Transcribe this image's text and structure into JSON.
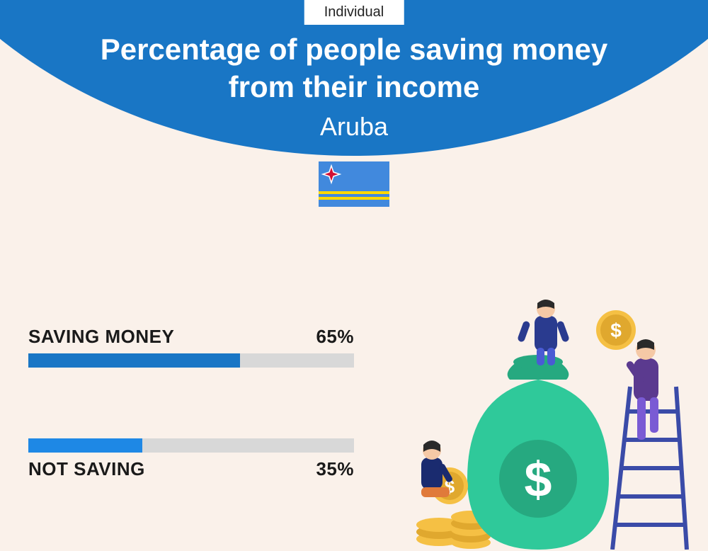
{
  "badge": "Individual",
  "title_line1": "Percentage of people saving money",
  "title_line2": "from their income",
  "country": "Aruba",
  "flag": {
    "bg": "#4189dd",
    "stripe": "#ffd700",
    "star_fill": "#d21034",
    "star_stroke": "#ffffff"
  },
  "bars": {
    "saving": {
      "label": "SAVING MONEY",
      "value_text": "65%",
      "value": 65,
      "fill_color": "#1976c5",
      "track_color": "#d8d8d8"
    },
    "not_saving": {
      "label": "NOT SAVING",
      "value_text": "35%",
      "value": 35,
      "fill_color": "#1e88e5",
      "track_color": "#d8d8d8"
    }
  },
  "colors": {
    "header_bg": "#1976c5",
    "page_bg": "#faf1ea",
    "text_dark": "#1a1a1a"
  },
  "illustration": {
    "bag": "#2fc99a",
    "bag_shadow": "#26a980",
    "coin": "#f5c044",
    "coin_edge": "#e0a82e",
    "person1_top": "#2a3b8f",
    "person1_bottom": "#4a5bd4",
    "person2_top": "#5b3a8f",
    "person2_bottom": "#7a5bd4",
    "person3_top": "#1a2b6f",
    "person3_bottom": "#e07a3a",
    "skin": "#f5c9a6",
    "hair": "#2a2a2a",
    "ladder": "#3a4ba8"
  }
}
